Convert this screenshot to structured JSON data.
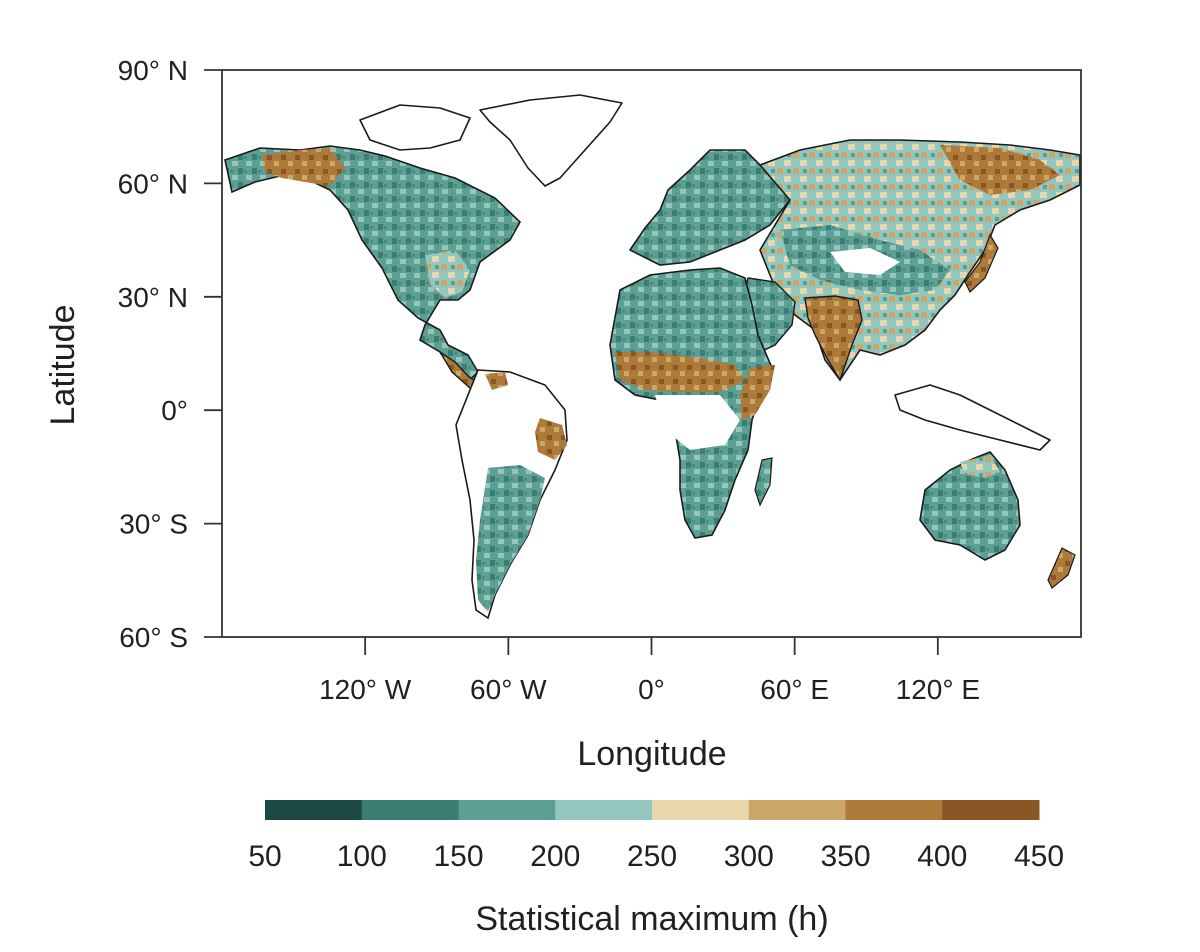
{
  "map": {
    "x_axis": {
      "title": "Longitude",
      "range": [
        -180,
        180
      ],
      "ticks": [
        {
          "value": -120,
          "label": "120° W"
        },
        {
          "value": -60,
          "label": "60° W"
        },
        {
          "value": 0,
          "label": "0°"
        },
        {
          "value": 60,
          "label": "60° E"
        },
        {
          "value": 120,
          "label": "120° E"
        }
      ]
    },
    "y_axis": {
      "title": "Latitude",
      "range": [
        -60,
        90
      ],
      "ticks": [
        {
          "value": 90,
          "label": "90° N"
        },
        {
          "value": 60,
          "label": "60° N"
        },
        {
          "value": 30,
          "label": "30° N"
        },
        {
          "value": 0,
          "label": "0°"
        },
        {
          "value": -30,
          "label": "30° S"
        },
        {
          "value": -60,
          "label": "60° S"
        }
      ]
    },
    "colorbar": {
      "title": "Statistical maximum (h)",
      "boundaries": [
        50,
        100,
        150,
        200,
        250,
        300,
        350,
        400,
        450
      ],
      "colors": [
        "#1c4a43",
        "#3a7d72",
        "#5e9f93",
        "#93c6bd",
        "#e9d7ac",
        "#cba76a",
        "#ad7a3a",
        "#8a5724"
      ]
    }
  }
}
